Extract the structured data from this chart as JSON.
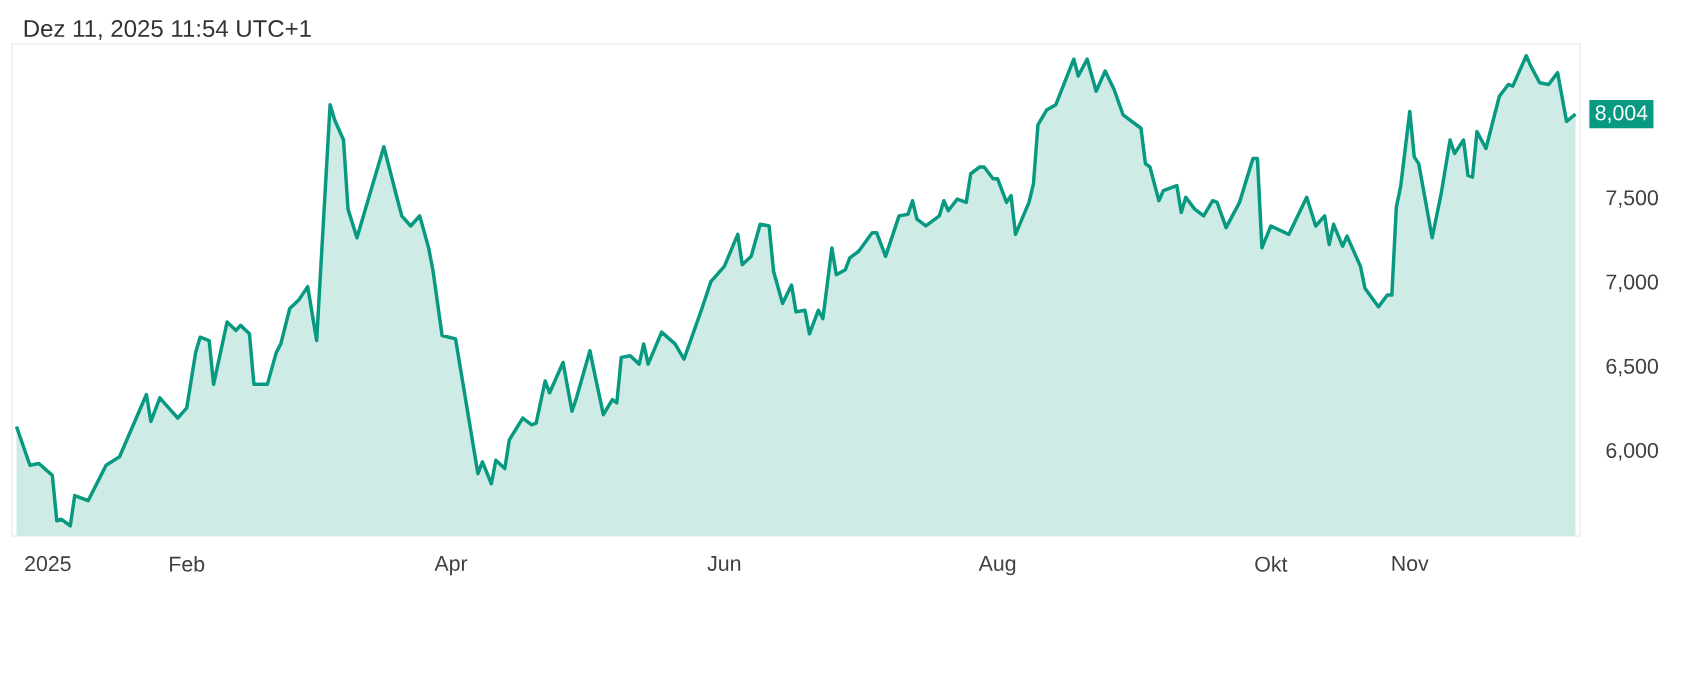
{
  "chart_data": {
    "type": "area",
    "title": "Dez 11, 2025 11:54 UTC+1",
    "color": "#089981",
    "xlim": [
      "2024-12-24",
      "2025-12-09"
    ],
    "ylim": [
      5500,
      8420
    ],
    "xticks": [
      {
        "value": "2025-01-01",
        "label": "2025"
      },
      {
        "value": "2025-02-01",
        "label": "Feb"
      },
      {
        "value": "2025-04-01",
        "label": "Apr"
      },
      {
        "value": "2025-06-01",
        "label": "Jun"
      },
      {
        "value": "2025-08-01",
        "label": "Aug"
      },
      {
        "value": "2025-10-01",
        "label": "Okt"
      },
      {
        "value": "2025-11-01",
        "label": "Nov"
      }
    ],
    "yticks": [
      {
        "value": 6000,
        "label": "6,000"
      },
      {
        "value": 6500,
        "label": "6,500"
      },
      {
        "value": 7000,
        "label": "7,000"
      },
      {
        "value": 7500,
        "label": "7,500"
      }
    ],
    "x": [
      "2024-12-25",
      "2024-12-28",
      "2024-12-30",
      "2025-01-02",
      "2025-01-03",
      "2025-01-04",
      "2025-01-06",
      "2025-01-07",
      "2025-01-10",
      "2025-01-14",
      "2025-01-17",
      "2025-01-23",
      "2025-01-24",
      "2025-01-26",
      "2025-01-30",
      "2025-02-01",
      "2025-02-03",
      "2025-02-04",
      "2025-02-06",
      "2025-02-07",
      "2025-02-10",
      "2025-02-12",
      "2025-02-13",
      "2025-02-15",
      "2025-02-16",
      "2025-02-19",
      "2025-02-21",
      "2025-02-22",
      "2025-02-24",
      "2025-02-26",
      "2025-02-28",
      "2025-03-02",
      "2025-03-05",
      "2025-03-06",
      "2025-03-08",
      "2025-03-09",
      "2025-03-11",
      "2025-03-17",
      "2025-03-20",
      "2025-03-21",
      "2025-03-23",
      "2025-03-25",
      "2025-03-27",
      "2025-03-28",
      "2025-03-30",
      "2025-04-02",
      "2025-04-07",
      "2025-04-08",
      "2025-04-10",
      "2025-04-11",
      "2025-04-13",
      "2025-04-14",
      "2025-04-17",
      "2025-04-19",
      "2025-04-20",
      "2025-04-22",
      "2025-04-23",
      "2025-04-26",
      "2025-04-28",
      "2025-04-29",
      "2025-05-02",
      "2025-05-03",
      "2025-05-05",
      "2025-05-07",
      "2025-05-08",
      "2025-05-09",
      "2025-05-11",
      "2025-05-13",
      "2025-05-14",
      "2025-05-15",
      "2025-05-18",
      "2025-05-21",
      "2025-05-23",
      "2025-05-27",
      "2025-05-29",
      "2025-06-01",
      "2025-06-04",
      "2025-06-05",
      "2025-06-07",
      "2025-06-09",
      "2025-06-11",
      "2025-06-12",
      "2025-06-14",
      "2025-06-16",
      "2025-06-17",
      "2025-06-19",
      "2025-06-20",
      "2025-06-22",
      "2025-06-23",
      "2025-06-25",
      "2025-06-26",
      "2025-06-28",
      "2025-06-29",
      "2025-07-01",
      "2025-07-04",
      "2025-07-05",
      "2025-07-07",
      "2025-07-10",
      "2025-07-12",
      "2025-07-13",
      "2025-07-14",
      "2025-07-16",
      "2025-07-19",
      "2025-07-20",
      "2025-07-21",
      "2025-07-23",
      "2025-07-25",
      "2025-07-26",
      "2025-07-28",
      "2025-07-29",
      "2025-07-31",
      "2025-08-01",
      "2025-08-03",
      "2025-08-04",
      "2025-08-05",
      "2025-08-08",
      "2025-08-09",
      "2025-08-10",
      "2025-08-12",
      "2025-08-14",
      "2025-08-18",
      "2025-08-19",
      "2025-08-21",
      "2025-08-23",
      "2025-08-25",
      "2025-08-27",
      "2025-08-29",
      "2025-09-02",
      "2025-09-03",
      "2025-09-04",
      "2025-09-06",
      "2025-09-07",
      "2025-09-10",
      "2025-09-11",
      "2025-09-12",
      "2025-09-14",
      "2025-09-16",
      "2025-09-18",
      "2025-09-19",
      "2025-09-21",
      "2025-09-24",
      "2025-09-27",
      "2025-09-28",
      "2025-09-29",
      "2025-10-01",
      "2025-10-05",
      "2025-10-07",
      "2025-10-09",
      "2025-10-11",
      "2025-10-13",
      "2025-10-14",
      "2025-10-15",
      "2025-10-17",
      "2025-10-18",
      "2025-10-21",
      "2025-10-22",
      "2025-10-25",
      "2025-10-27",
      "2025-10-28",
      "2025-10-29",
      "2025-10-30",
      "2025-11-01",
      "2025-11-02",
      "2025-11-03",
      "2025-11-06",
      "2025-11-08",
      "2025-11-10",
      "2025-11-11",
      "2025-11-13",
      "2025-11-14",
      "2025-11-15",
      "2025-11-16",
      "2025-11-18",
      "2025-11-21",
      "2025-11-23",
      "2025-11-24",
      "2025-11-27",
      "2025-11-28",
      "2025-11-30",
      "2025-12-02",
      "2025-12-04",
      "2025-12-06",
      "2025-12-08"
    ],
    "values": [
      6150,
      5920,
      5930,
      5860,
      5590,
      5600,
      5560,
      5740,
      5710,
      5920,
      5970,
      6340,
      6180,
      6320,
      6200,
      6260,
      6590,
      6680,
      6660,
      6400,
      6770,
      6720,
      6750,
      6700,
      6400,
      6400,
      6590,
      6640,
      6850,
      6900,
      6980,
      6660,
      8060,
      7970,
      7850,
      7440,
      7270,
      7810,
      7500,
      7400,
      7340,
      7400,
      7210,
      7070,
      6690,
      6670,
      5870,
      5940,
      5810,
      5950,
      5900,
      6070,
      6200,
      6160,
      6170,
      6420,
      6350,
      6530,
      6240,
      6320,
      6600,
      6470,
      6220,
      6310,
      6290,
      6560,
      6570,
      6520,
      6640,
      6520,
      6710,
      6640,
      6550,
      6850,
      7010,
      7100,
      7290,
      7110,
      7160,
      7350,
      7340,
      7070,
      6880,
      6990,
      6830,
      6840,
      6700,
      6840,
      6790,
      7210,
      7050,
      7080,
      7150,
      7190,
      7300,
      7300,
      7160,
      7400,
      7410,
      7490,
      7380,
      7340,
      7400,
      7490,
      7430,
      7500,
      7480,
      7650,
      7690,
      7690,
      7620,
      7620,
      7480,
      7520,
      7290,
      7480,
      7590,
      7940,
      8030,
      8060,
      8330,
      8230,
      8330,
      8140,
      8260,
      8150,
      8000,
      7920,
      7710,
      7690,
      7490,
      7550,
      7580,
      7420,
      7510,
      7440,
      7400,
      7490,
      7480,
      7330,
      7480,
      7740,
      7740,
      7210,
      7340,
      7290,
      7400,
      7510,
      7340,
      7400,
      7230,
      7350,
      7220,
      7280,
      7100,
      6970,
      6860,
      6930,
      6930,
      7450,
      7580,
      8020,
      7750,
      7710,
      7270,
      7530,
      7850,
      7770,
      7850,
      7640,
      7630,
      7900,
      7800,
      8110,
      8180,
      8170,
      8350,
      8290,
      8190,
      8180,
      8250,
      7960,
      8004
    ],
    "annotations": [
      {
        "text": "8,004",
        "x": "2025-12-08",
        "y": 8004
      }
    ]
  }
}
